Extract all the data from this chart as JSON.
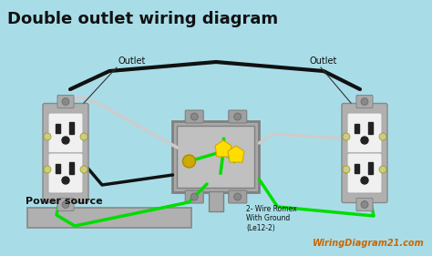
{
  "bg_color": "#a8dde8",
  "title": "Double outlet wiring diagram",
  "title_fontsize": 13,
  "outlet_label_left": "Outlet",
  "outlet_label_right": "Outlet",
  "power_source_label": "Power source",
  "romex_label": "2- Wire Romex\nWith Ground\n(Le12-2)",
  "watermark": "WiringDiagram21.com",
  "watermark_color": "#cc6600",
  "black_wire_color": "#111111",
  "white_wire_color": "#cccccc",
  "green_wire_color": "#00dd00",
  "gray_color": "#aaaaaa"
}
